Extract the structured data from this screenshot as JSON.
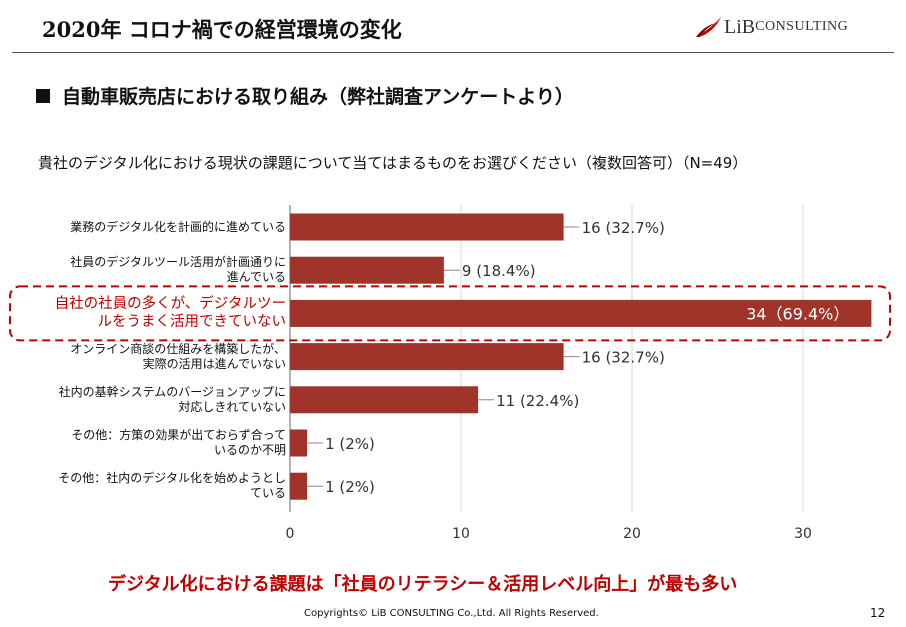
{
  "header": {
    "title": "2020年 コロナ禍での経営環境の変化",
    "logo_main": "LiB",
    "logo_sub": "CONSULTING",
    "logo_color": "#c00000"
  },
  "section_title": "自動車販売店における取り組み（弊社調査アンケートより）",
  "question": "貴社のデジタル化における現状の課題について当てはまるものをお選びください（複数回答可）（N=49）",
  "chart_data": {
    "type": "bar",
    "orientation": "horizontal",
    "categories": [
      [
        "業務のデジタル化を計画的に進めている"
      ],
      [
        "社員のデジタルツール活用が計画通りに",
        "進んでいる"
      ],
      [
        "自社の社員の多くが、デジタルツー",
        "ルをうまく活用できていない"
      ],
      [
        "オンライン商談の仕組みを構築したが、",
        "実際の活用は進んでいない"
      ],
      [
        "社内の基幹システムのバージョンアップに",
        "対応しきれていない"
      ],
      [
        "その他：方策の効果が出ておらず合って",
        "いるのか不明"
      ],
      [
        "その他：社内のデジタル化を始めようとし",
        "ている"
      ]
    ],
    "values": [
      16,
      9,
      34,
      16,
      11,
      1,
      1
    ],
    "value_labels": [
      "16 (32.7%)",
      "9 (18.4%)",
      "34（69.4%）",
      "16 (32.7%)",
      "11 (22.4%)",
      "1 (2%)",
      "1 (2%)"
    ],
    "highlight_index": 2,
    "xlim": [
      0,
      34
    ],
    "xticks": [
      0,
      10,
      20,
      30
    ],
    "bar_color": "#a0342b",
    "highlight_color": "#c00000",
    "grid": true
  },
  "conclusion": "デジタル化における課題は「社員のリテラシー＆活用レベル向上」が最も多い",
  "footer": {
    "copyright": "Copyrights© LiB CONSULTING Co.,Ltd.  All Rights Reserved.",
    "page_number": "12"
  }
}
